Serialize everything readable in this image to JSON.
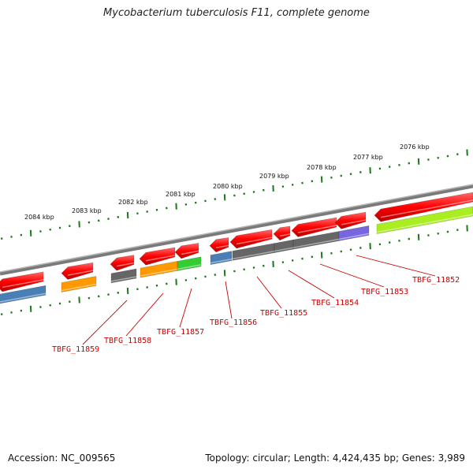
{
  "title": "Mycobacterium tuberculosis F11, complete genome",
  "footer": {
    "accession": "Accession: NC_009565",
    "summary": "Topology: circular; Length: 4,424,435 bp; Genes: 3,989"
  },
  "colors": {
    "forward_gene": "#ff0000",
    "backbone": "#888888",
    "tick": "#1a7a1a",
    "label": "#cc0000",
    "blue": "#4a7fb5",
    "orange": "#ff9900",
    "gray": "#666666",
    "green": "#33cc33",
    "purple": "#7766dd",
    "lime": "#aaee22"
  },
  "scale_labels": [
    "2084 kbp",
    "2083 kbp",
    "2082 kbp",
    "2081 kbp",
    "2080 kbp",
    "2079 kbp",
    "2078 kbp",
    "2077 kbp",
    "2076 kbp"
  ],
  "gene_labels": [
    "TBFG_11859",
    "TBFG_11858",
    "TBFG_11857",
    "TBFG_11856",
    "TBFG_11855",
    "TBFG_11854",
    "TBFG_11853",
    "TBFG_11852"
  ]
}
